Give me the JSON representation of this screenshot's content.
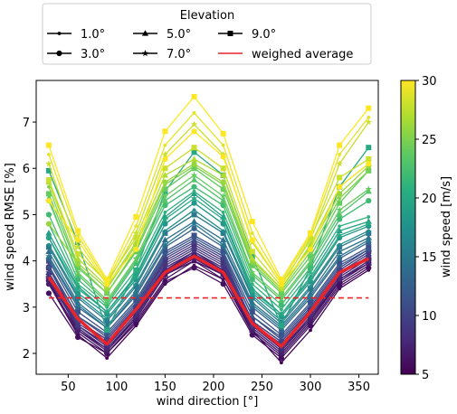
{
  "chart_data": {
    "type": "line",
    "xlabel": "wind direction [°]",
    "ylabel": "wind speed RMSE [%]",
    "xlim": [
      17,
      370
    ],
    "ylim": [
      1.55,
      7.9
    ],
    "x_ticks": [
      50,
      100,
      150,
      200,
      250,
      300,
      350
    ],
    "y_ticks": [
      2,
      3,
      4,
      5,
      6,
      7
    ],
    "x": [
      30,
      60,
      90,
      120,
      150,
      180,
      210,
      240,
      270,
      300,
      330,
      360
    ],
    "reference_line": {
      "y": 3.2,
      "color": "#e8242b",
      "style": "dashed"
    },
    "legend": {
      "title": "Elevation",
      "placement": "top",
      "entries": [
        {
          "label": "1.0°",
          "marker": "point"
        },
        {
          "label": "3.0°",
          "marker": "circle"
        },
        {
          "label": "5.0°",
          "marker": "triangle"
        },
        {
          "label": "7.0°",
          "marker": "star"
        },
        {
          "label": "9.0°",
          "marker": "square"
        },
        {
          "label": "weighed average",
          "marker": "none",
          "color": "#e8242b"
        }
      ]
    },
    "colorbar": {
      "label": "wind speed [m/s]",
      "range": [
        5,
        30
      ],
      "ticks": [
        5,
        10,
        15,
        20,
        25,
        30
      ],
      "colormap": "viridis"
    },
    "series": [
      {
        "speed": 5,
        "marker": "point",
        "values": [
          3.5,
          2.4,
          1.9,
          2.6,
          3.5,
          3.9,
          3.6,
          2.5,
          1.8,
          2.5,
          3.4,
          3.8
        ]
      },
      {
        "speed": 6,
        "marker": "circle",
        "values": [
          3.3,
          2.35,
          2.0,
          2.65,
          3.55,
          3.85,
          3.5,
          2.4,
          1.9,
          2.6,
          3.45,
          3.85
        ]
      },
      {
        "speed": 6,
        "marker": "triangle",
        "values": [
          3.7,
          2.5,
          2.1,
          2.75,
          3.7,
          4.0,
          3.7,
          2.5,
          2.0,
          2.7,
          3.55,
          3.95
        ]
      },
      {
        "speed": 6,
        "marker": "star",
        "values": [
          3.55,
          2.45,
          2.0,
          2.7,
          3.6,
          4.0,
          3.6,
          2.45,
          1.95,
          2.65,
          3.5,
          3.9
        ]
      },
      {
        "speed": 6,
        "marker": "square",
        "values": [
          3.6,
          2.55,
          2.1,
          2.8,
          3.75,
          4.1,
          3.75,
          2.55,
          2.05,
          2.75,
          3.6,
          4.0
        ]
      },
      {
        "speed": 7,
        "marker": "point",
        "values": [
          3.55,
          2.6,
          2.15,
          2.85,
          3.8,
          4.15,
          3.8,
          2.6,
          2.1,
          2.8,
          3.65,
          4.05
        ]
      },
      {
        "speed": 7,
        "marker": "circle",
        "values": [
          3.5,
          2.5,
          2.05,
          2.75,
          3.7,
          4.05,
          3.7,
          2.5,
          2.0,
          2.7,
          3.6,
          3.95
        ]
      },
      {
        "speed": 7,
        "marker": "triangle",
        "values": [
          3.75,
          2.6,
          2.2,
          2.9,
          3.85,
          4.2,
          3.85,
          2.6,
          2.15,
          2.85,
          3.7,
          4.1
        ]
      },
      {
        "speed": 8,
        "marker": "star",
        "values": [
          3.6,
          2.55,
          2.1,
          2.8,
          3.8,
          4.2,
          3.8,
          2.55,
          2.05,
          2.8,
          3.6,
          4.0
        ]
      },
      {
        "speed": 8,
        "marker": "square",
        "values": [
          3.85,
          2.7,
          2.3,
          3.0,
          4.0,
          4.35,
          4.0,
          2.7,
          2.25,
          2.95,
          3.8,
          4.2
        ]
      },
      {
        "speed": 9,
        "marker": "point",
        "values": [
          3.7,
          2.65,
          2.25,
          2.95,
          3.95,
          4.3,
          3.95,
          2.65,
          2.2,
          2.9,
          3.75,
          4.15
        ]
      },
      {
        "speed": 9,
        "marker": "circle",
        "values": [
          3.65,
          2.6,
          2.2,
          2.9,
          3.9,
          4.25,
          3.9,
          2.6,
          2.15,
          2.85,
          3.7,
          4.1
        ]
      },
      {
        "speed": 10,
        "marker": "triangle",
        "values": [
          3.9,
          2.8,
          2.35,
          3.05,
          4.1,
          4.45,
          4.1,
          2.8,
          2.3,
          3.0,
          3.85,
          4.25
        ]
      },
      {
        "speed": 10,
        "marker": "star",
        "values": [
          3.75,
          2.7,
          2.3,
          3.0,
          4.05,
          4.4,
          4.05,
          2.7,
          2.25,
          2.95,
          3.8,
          4.2
        ]
      },
      {
        "speed": 11,
        "marker": "square",
        "values": [
          4.0,
          2.9,
          2.45,
          3.15,
          4.2,
          4.55,
          4.2,
          2.9,
          2.4,
          3.1,
          3.95,
          4.3
        ]
      },
      {
        "speed": 12,
        "marker": "point",
        "values": [
          3.85,
          2.8,
          2.4,
          3.1,
          4.15,
          4.5,
          4.15,
          2.8,
          2.35,
          3.05,
          3.9,
          4.25
        ]
      },
      {
        "speed": 13,
        "marker": "circle",
        "values": [
          4.05,
          3.0,
          2.55,
          3.25,
          4.3,
          4.7,
          4.3,
          3.0,
          2.5,
          3.2,
          4.05,
          4.4
        ]
      },
      {
        "speed": 14,
        "marker": "triangle",
        "values": [
          4.2,
          3.1,
          2.6,
          3.35,
          4.45,
          4.85,
          4.45,
          3.1,
          2.6,
          3.3,
          4.2,
          4.5
        ]
      },
      {
        "speed": 15,
        "marker": "star",
        "values": [
          4.1,
          3.05,
          2.55,
          3.3,
          4.35,
          4.8,
          4.35,
          3.05,
          2.55,
          3.25,
          4.1,
          4.45
        ]
      },
      {
        "speed": 15,
        "marker": "square",
        "values": [
          4.3,
          3.2,
          2.7,
          3.45,
          4.6,
          5.0,
          4.6,
          3.2,
          2.65,
          3.4,
          4.3,
          4.6
        ]
      },
      {
        "speed": 17,
        "marker": "point",
        "values": [
          4.35,
          3.25,
          2.75,
          3.5,
          4.65,
          5.1,
          4.65,
          3.25,
          2.7,
          3.45,
          4.35,
          4.65
        ]
      },
      {
        "speed": 18,
        "marker": "circle",
        "values": [
          4.5,
          3.3,
          2.85,
          3.6,
          4.8,
          5.25,
          4.8,
          3.3,
          2.8,
          3.55,
          4.5,
          4.75
        ]
      },
      {
        "speed": 19,
        "marker": "triangle",
        "values": [
          4.6,
          3.45,
          2.9,
          3.7,
          4.95,
          5.45,
          4.95,
          3.4,
          2.85,
          3.65,
          4.65,
          4.85
        ]
      },
      {
        "speed": 20,
        "marker": "star",
        "values": [
          4.5,
          3.4,
          2.9,
          3.65,
          4.9,
          5.35,
          4.9,
          3.35,
          2.85,
          3.6,
          4.55,
          4.8
        ]
      },
      {
        "speed": 20,
        "marker": "square",
        "values": [
          5.95,
          4.4,
          2.5,
          3.8,
          5.5,
          6.35,
          5.85,
          4.1,
          2.6,
          3.85,
          5.6,
          6.45
        ]
      },
      {
        "speed": 21,
        "marker": "point",
        "values": [
          4.8,
          3.5,
          3.0,
          3.8,
          5.05,
          5.5,
          5.05,
          3.5,
          2.95,
          3.75,
          4.75,
          4.95
        ]
      },
      {
        "speed": 22,
        "marker": "circle",
        "values": [
          5.0,
          3.6,
          3.05,
          3.95,
          5.2,
          5.6,
          5.2,
          3.6,
          3.05,
          3.85,
          4.9,
          5.3
        ]
      },
      {
        "speed": 23,
        "marker": "triangle",
        "values": [
          5.35,
          3.7,
          3.1,
          4.0,
          5.3,
          5.75,
          5.3,
          3.7,
          3.15,
          3.95,
          5.0,
          5.5
        ]
      },
      {
        "speed": 24,
        "marker": "star",
        "values": [
          5.3,
          3.75,
          3.15,
          4.05,
          5.4,
          5.85,
          5.4,
          3.75,
          3.2,
          4.0,
          5.1,
          5.55
        ]
      },
      {
        "speed": 24,
        "marker": "square",
        "values": [
          5.45,
          3.85,
          3.3,
          4.2,
          5.55,
          6.0,
          5.55,
          3.9,
          3.3,
          4.1,
          5.25,
          5.95
        ]
      },
      {
        "speed": 25,
        "marker": "point",
        "values": [
          5.6,
          3.9,
          3.3,
          4.25,
          5.65,
          6.05,
          5.65,
          3.95,
          3.35,
          4.2,
          5.35,
          5.95
        ]
      },
      {
        "speed": 26,
        "marker": "circle",
        "values": [
          4.8,
          3.95,
          3.4,
          4.35,
          5.7,
          6.1,
          5.7,
          4.0,
          3.4,
          4.3,
          5.45,
          6.05
        ]
      },
      {
        "speed": 27,
        "marker": "triangle",
        "values": [
          5.7,
          4.05,
          3.45,
          4.4,
          5.85,
          6.2,
          5.85,
          4.05,
          3.4,
          4.35,
          5.6,
          6.1
        ]
      },
      {
        "speed": 28,
        "marker": "star",
        "values": [
          6.1,
          4.3,
          3.5,
          4.6,
          6.3,
          6.95,
          6.3,
          4.4,
          3.5,
          4.45,
          6.1,
          7.0
        ]
      },
      {
        "speed": 28,
        "marker": "square",
        "values": [
          5.75,
          4.15,
          3.55,
          4.5,
          6.0,
          6.45,
          6.0,
          4.2,
          3.45,
          4.5,
          5.8,
          6.2
        ]
      },
      {
        "speed": 29,
        "marker": "point",
        "values": [
          6.3,
          4.55,
          3.55,
          4.75,
          6.5,
          7.2,
          6.5,
          4.6,
          3.55,
          4.55,
          6.3,
          7.1
        ]
      },
      {
        "speed": 30,
        "marker": "square",
        "values": [
          6.5,
          4.65,
          3.6,
          4.95,
          6.8,
          7.55,
          6.75,
          4.85,
          3.6,
          4.6,
          6.5,
          7.3
        ]
      },
      {
        "speed": 30,
        "marker": "circle",
        "values": [
          5.3,
          4.45,
          3.5,
          4.25,
          6.2,
          6.8,
          6.25,
          4.45,
          3.5,
          4.25,
          5.6,
          6.1
        ]
      }
    ],
    "weighed_average": {
      "label": "weighed average",
      "color": "#e8242b",
      "values": [
        3.65,
        2.75,
        2.2,
        2.95,
        3.75,
        4.1,
        3.75,
        2.65,
        2.15,
        2.9,
        3.75,
        4.05
      ]
    }
  }
}
